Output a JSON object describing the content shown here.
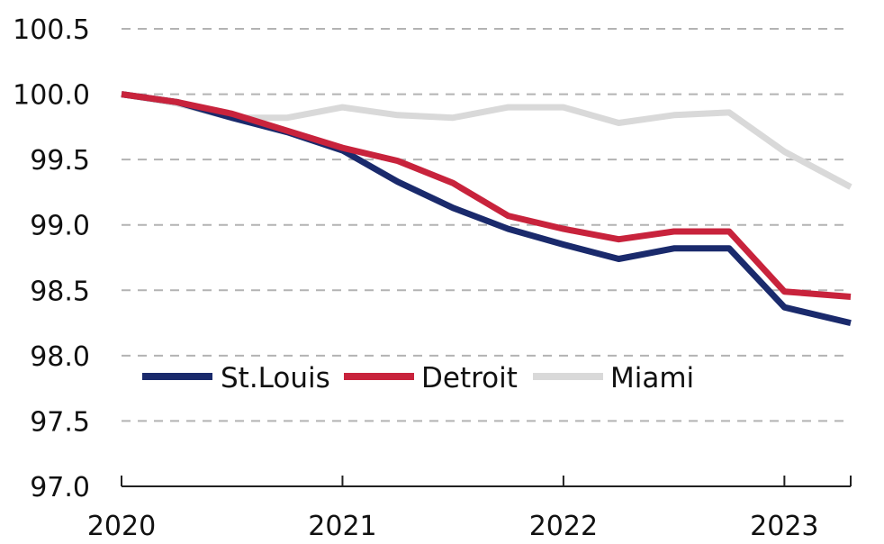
{
  "chart_data": {
    "type": "line",
    "title": "",
    "xlabel": "",
    "ylabel": "",
    "x_ticks": [
      "2020",
      "2021",
      "2022",
      "2023"
    ],
    "xlim": [
      2020.0,
      2023.3
    ],
    "y_ticks": [
      "100.5",
      "100.0",
      "99.5",
      "99.0",
      "98.5",
      "98.0",
      "97.5",
      "97.0"
    ],
    "ylim": [
      97.0,
      100.5
    ],
    "grid": true,
    "legend_position": "bottom-left",
    "x": [
      2020.0,
      2020.25,
      2020.5,
      2020.75,
      2021.0,
      2021.25,
      2021.5,
      2021.75,
      2022.0,
      2022.25,
      2022.5,
      2022.75,
      2023.0,
      2023.3
    ],
    "series": [
      {
        "name": "St.Louis",
        "color": "#1a2a6c",
        "values": [
          100.0,
          99.94,
          99.82,
          99.71,
          99.57,
          99.33,
          99.13,
          98.97,
          98.85,
          98.74,
          98.82,
          98.82,
          98.37,
          98.25
        ]
      },
      {
        "name": "Detroit",
        "color": "#c8233c",
        "values": [
          100.0,
          99.94,
          99.85,
          99.72,
          99.59,
          99.49,
          99.32,
          99.07,
          98.97,
          98.89,
          98.95,
          98.95,
          98.49,
          98.45
        ]
      },
      {
        "name": "Miami",
        "color": "#d9d9d9",
        "values": [
          100.0,
          99.93,
          99.82,
          99.82,
          99.9,
          99.84,
          99.82,
          99.9,
          99.9,
          99.78,
          99.84,
          99.86,
          99.56,
          99.29
        ]
      }
    ]
  }
}
